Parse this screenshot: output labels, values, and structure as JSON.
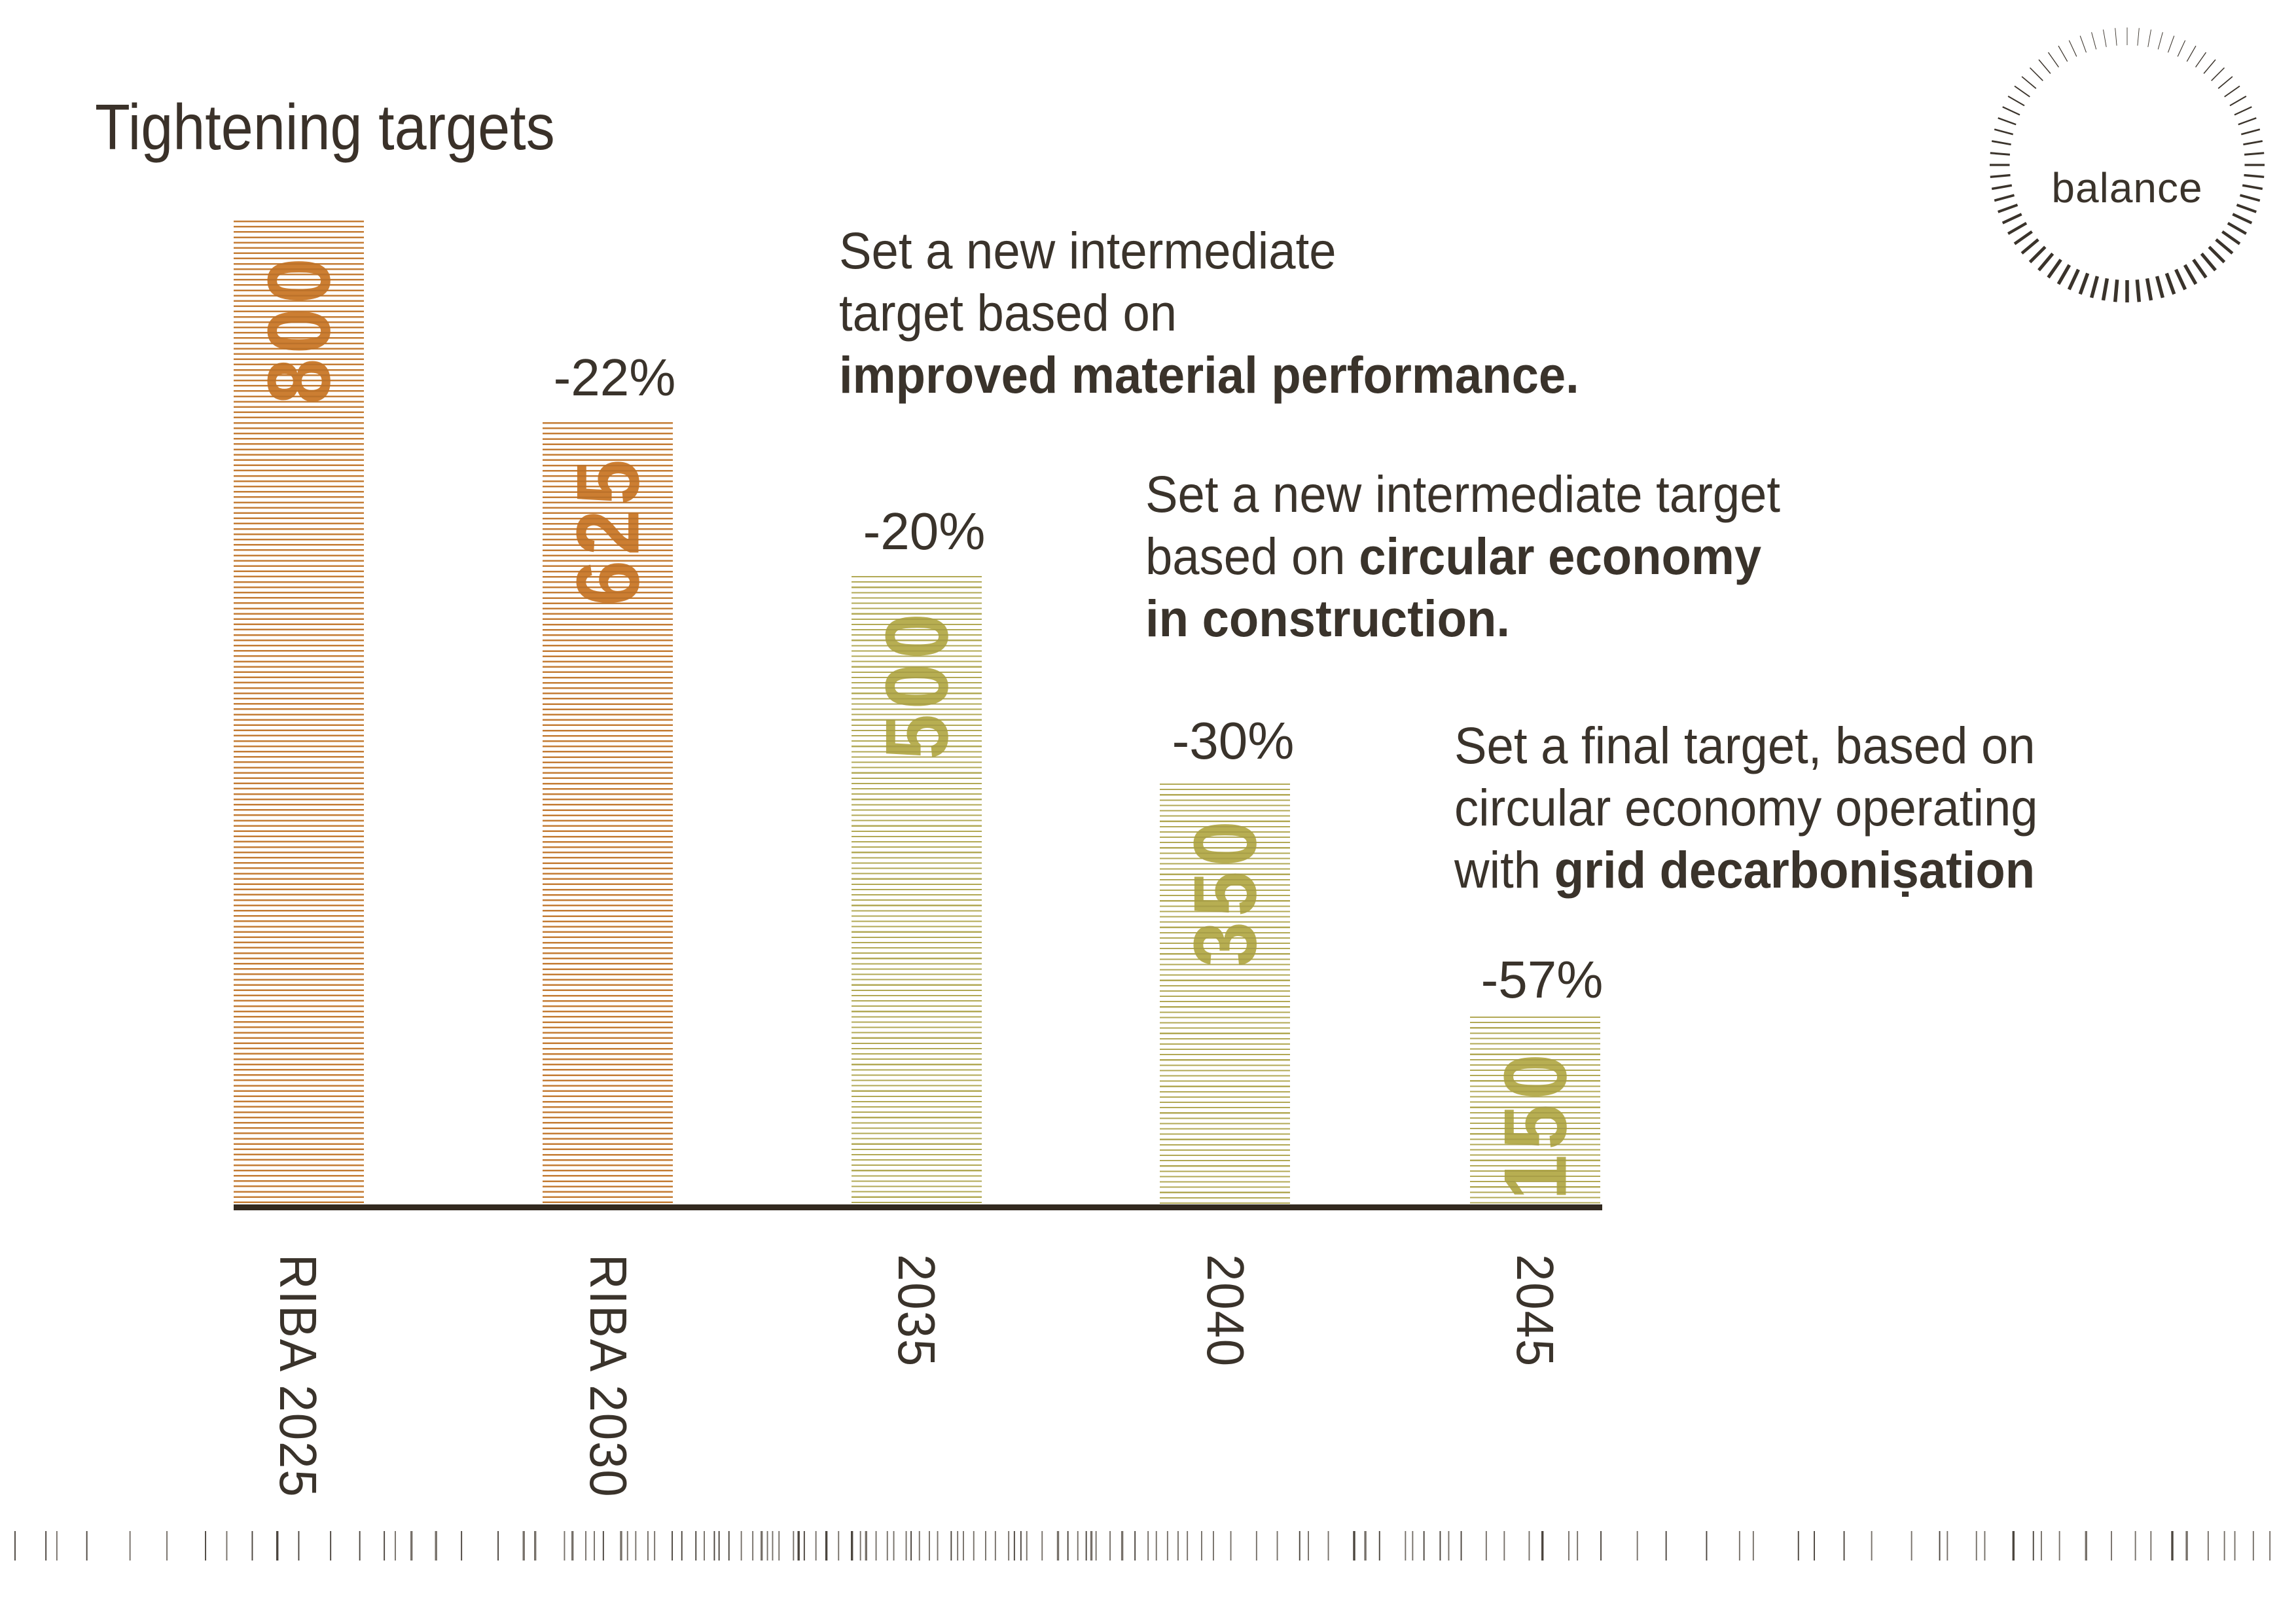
{
  "title": "Tightening targets",
  "logo": {
    "label": "balance"
  },
  "chart_data": {
    "type": "bar",
    "title": "Tightening targets",
    "categories": [
      "RIBA 2025",
      "RIBA 2030",
      "2035",
      "2040",
      "2045"
    ],
    "values": [
      800,
      625,
      500,
      350,
      150
    ],
    "value_labels": [
      "800",
      "625",
      "500",
      "350",
      "150"
    ],
    "percent_changes": [
      "",
      "-22%",
      "-20%",
      "-30%",
      "-57%"
    ],
    "ylim": [
      0,
      800
    ],
    "grid": false,
    "legend": "none",
    "bar_style": "horizontal-stripe hatching, value printed vertically inside bar",
    "bar_colors": [
      "#d68b3f",
      "#d68b3f",
      "#c4bb63",
      "#c4bb63",
      "#c4bb63"
    ],
    "axis_color": "#32291f",
    "text_color": "#3a332b"
  },
  "annotations": [
    {
      "light": "Set a new intermediate\ntarget based on\n",
      "bold": "improved material performance."
    },
    {
      "light": "Set a new intermediate target\nbased on ",
      "bold": "circular economy\nin construction."
    },
    {
      "light": "Set a final target, based on\ncircular economy operating\nwith ",
      "bold": "grid decarboniṣation"
    }
  ]
}
